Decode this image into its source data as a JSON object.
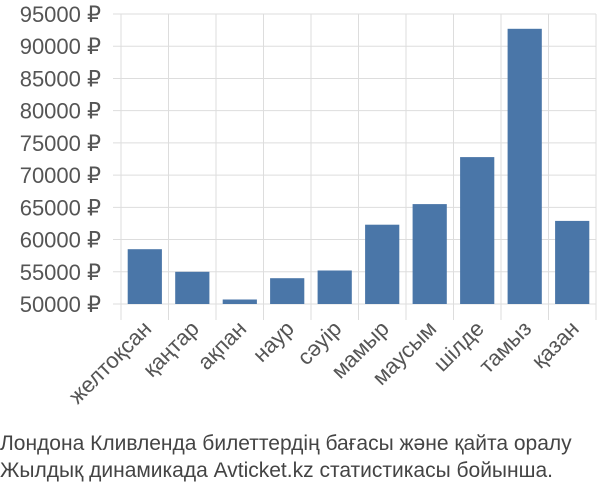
{
  "caption": {
    "line1": "Лондона Кливленда билеттердің бағасы және қайта оралу",
    "line2": "Жылдық динамикада Avticket.kz статистикасы бойынша."
  },
  "chart_data": {
    "type": "bar",
    "categories": [
      "желтоқсан",
      "қаңтар",
      "ақпан",
      "наур",
      "сәуір",
      "мамыр",
      "маусым",
      "шілде",
      "тамыз",
      "қазан"
    ],
    "values": [
      58500,
      55000,
      50700,
      54000,
      55200,
      62300,
      65500,
      72800,
      92700,
      62900
    ],
    "ylim": [
      49000,
      95000
    ],
    "yticks": [
      50000,
      55000,
      60000,
      65000,
      70000,
      75000,
      80000,
      85000,
      90000,
      95000
    ],
    "ytick_labels": [
      "50000 ₽",
      "55000 ₽",
      "60000 ₽",
      "65000 ₽",
      "70000 ₽",
      "75000 ₽",
      "80000 ₽",
      "85000 ₽",
      "90000 ₽",
      "95000 ₽"
    ],
    "bar_color": "#4a76a8",
    "grid": true
  }
}
